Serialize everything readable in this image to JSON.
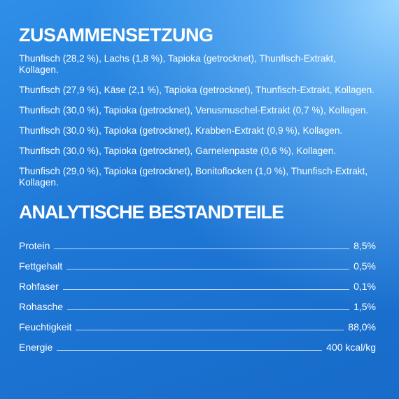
{
  "composition": {
    "title": "ZUSAMMENSETZUNG",
    "items": [
      "Thunfisch (28,2 %), Lachs (1,8 %), Tapioka (getrocknet), Thunfisch-Extrakt, Kollagen.",
      "Thunfisch (27,9 %), Käse (2,1 %), Tapioka (getrocknet), Thunfisch-Extrakt, Kollagen.",
      "Thunfisch (30,0 %), Tapioka (getrocknet), Venusmuschel-Extrakt (0,7 %), Kollagen.",
      "Thunfisch (30,0 %), Tapioka (getrocknet), Krabben-Extrakt (0,9 %), Kollagen.",
      "Thunfisch (30,0 %), Tapioka (getrocknet), Garnelenpaste (0,6 %), Kollagen.",
      "Thunfisch (29,0 %), Tapioka (getrocknet), Bonitoflocken (1,0 %), Thunfisch-Extrakt, Kollagen."
    ]
  },
  "analysis": {
    "title": "ANALYTISCHE BESTANDTEILE",
    "rows": [
      [
        "Protein",
        "8,5%"
      ],
      [
        "Fettgehalt",
        "0,5%"
      ],
      [
        "Rohfaser",
        "0,1%"
      ],
      [
        "Rohasche",
        "1,5%"
      ],
      [
        "Feuchtigkeit",
        "88,0%"
      ],
      [
        "Energie",
        "400 kcal/kg"
      ]
    ]
  }
}
